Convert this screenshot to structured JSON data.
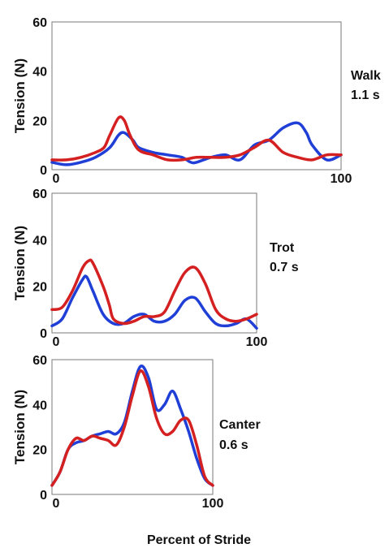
{
  "chart_data": [
    {
      "type": "line",
      "ylabel": "Tension (N)",
      "gait": "Walk",
      "duration": "1.1 s",
      "xlim": [
        0,
        100
      ],
      "ylim": [
        0,
        60
      ],
      "x_ticks": [
        "0",
        "100"
      ],
      "y_ticks": [
        "0",
        "20",
        "40",
        "60"
      ],
      "series": [
        {
          "color": "#1f3fd6",
          "x": [
            0,
            5,
            10,
            15,
            20,
            23,
            25,
            28,
            30,
            35,
            40,
            45,
            48,
            50,
            55,
            60,
            65,
            70,
            75,
            80,
            85,
            88,
            90,
            95,
            100
          ],
          "y": [
            3,
            2,
            3,
            5,
            9,
            14,
            15,
            12,
            9,
            7,
            6,
            5,
            3,
            3,
            5,
            6,
            4,
            10,
            12,
            17,
            19,
            15,
            10,
            4,
            6
          ]
        },
        {
          "color": "#d42020",
          "x": [
            0,
            5,
            10,
            15,
            18,
            20,
            23,
            25,
            27,
            30,
            35,
            40,
            45,
            50,
            55,
            60,
            65,
            70,
            75,
            80,
            85,
            90,
            95,
            100
          ],
          "y": [
            4,
            4,
            5,
            7,
            9,
            14,
            21,
            20,
            14,
            8,
            6,
            4,
            4,
            5,
            5,
            5,
            6,
            9,
            12,
            7,
            5,
            4,
            6,
            6
          ]
        }
      ]
    },
    {
      "type": "line",
      "ylabel": "Tension (N)",
      "gait": "Trot",
      "duration": "0.7 s",
      "xlim": [
        0,
        100
      ],
      "ylim": [
        0,
        60
      ],
      "x_ticks": [
        "0",
        "100"
      ],
      "y_ticks": [
        "0",
        "20",
        "40",
        "60"
      ],
      "series": [
        {
          "color": "#1f3fd6",
          "x": [
            0,
            5,
            10,
            15,
            17,
            20,
            25,
            30,
            35,
            40,
            45,
            50,
            55,
            60,
            65,
            70,
            75,
            80,
            85,
            90,
            95,
            100
          ],
          "y": [
            3,
            6,
            15,
            23,
            24,
            18,
            8,
            4,
            4,
            7,
            8,
            5,
            5,
            8,
            14,
            15,
            9,
            4,
            3,
            4,
            6,
            2
          ]
        },
        {
          "color": "#d42020",
          "x": [
            0,
            5,
            10,
            15,
            18,
            20,
            25,
            28,
            30,
            35,
            40,
            45,
            50,
            55,
            60,
            65,
            70,
            75,
            80,
            85,
            90,
            95,
            100
          ],
          "y": [
            10,
            11,
            18,
            28,
            31,
            30,
            20,
            12,
            6,
            4,
            5,
            7,
            7,
            9,
            18,
            26,
            28,
            21,
            10,
            6,
            5,
            6,
            8
          ]
        }
      ]
    },
    {
      "type": "line",
      "ylabel": "Tension (N)",
      "gait": "Canter",
      "duration": "0.6 s",
      "xlabel": "Percent of Stride",
      "xlim": [
        0,
        100
      ],
      "ylim": [
        0,
        60
      ],
      "x_ticks": [
        "0",
        "100"
      ],
      "y_ticks": [
        "0",
        "20",
        "40",
        "60"
      ],
      "series": [
        {
          "color": "#1f3fd6",
          "x": [
            0,
            5,
            10,
            15,
            20,
            25,
            30,
            35,
            40,
            45,
            50,
            55,
            60,
            65,
            70,
            75,
            80,
            85,
            90,
            95,
            100
          ],
          "y": [
            4,
            10,
            20,
            23,
            24,
            26,
            27,
            28,
            27,
            32,
            46,
            57,
            52,
            38,
            40,
            46,
            38,
            28,
            16,
            7,
            4
          ]
        },
        {
          "color": "#d42020",
          "x": [
            0,
            5,
            10,
            15,
            20,
            25,
            30,
            35,
            40,
            45,
            50,
            55,
            60,
            65,
            70,
            75,
            80,
            85,
            90,
            95,
            100
          ],
          "y": [
            4,
            10,
            20,
            25,
            24,
            26,
            25,
            24,
            22,
            30,
            44,
            55,
            48,
            34,
            27,
            28,
            33,
            33,
            22,
            8,
            4
          ]
        }
      ]
    }
  ]
}
